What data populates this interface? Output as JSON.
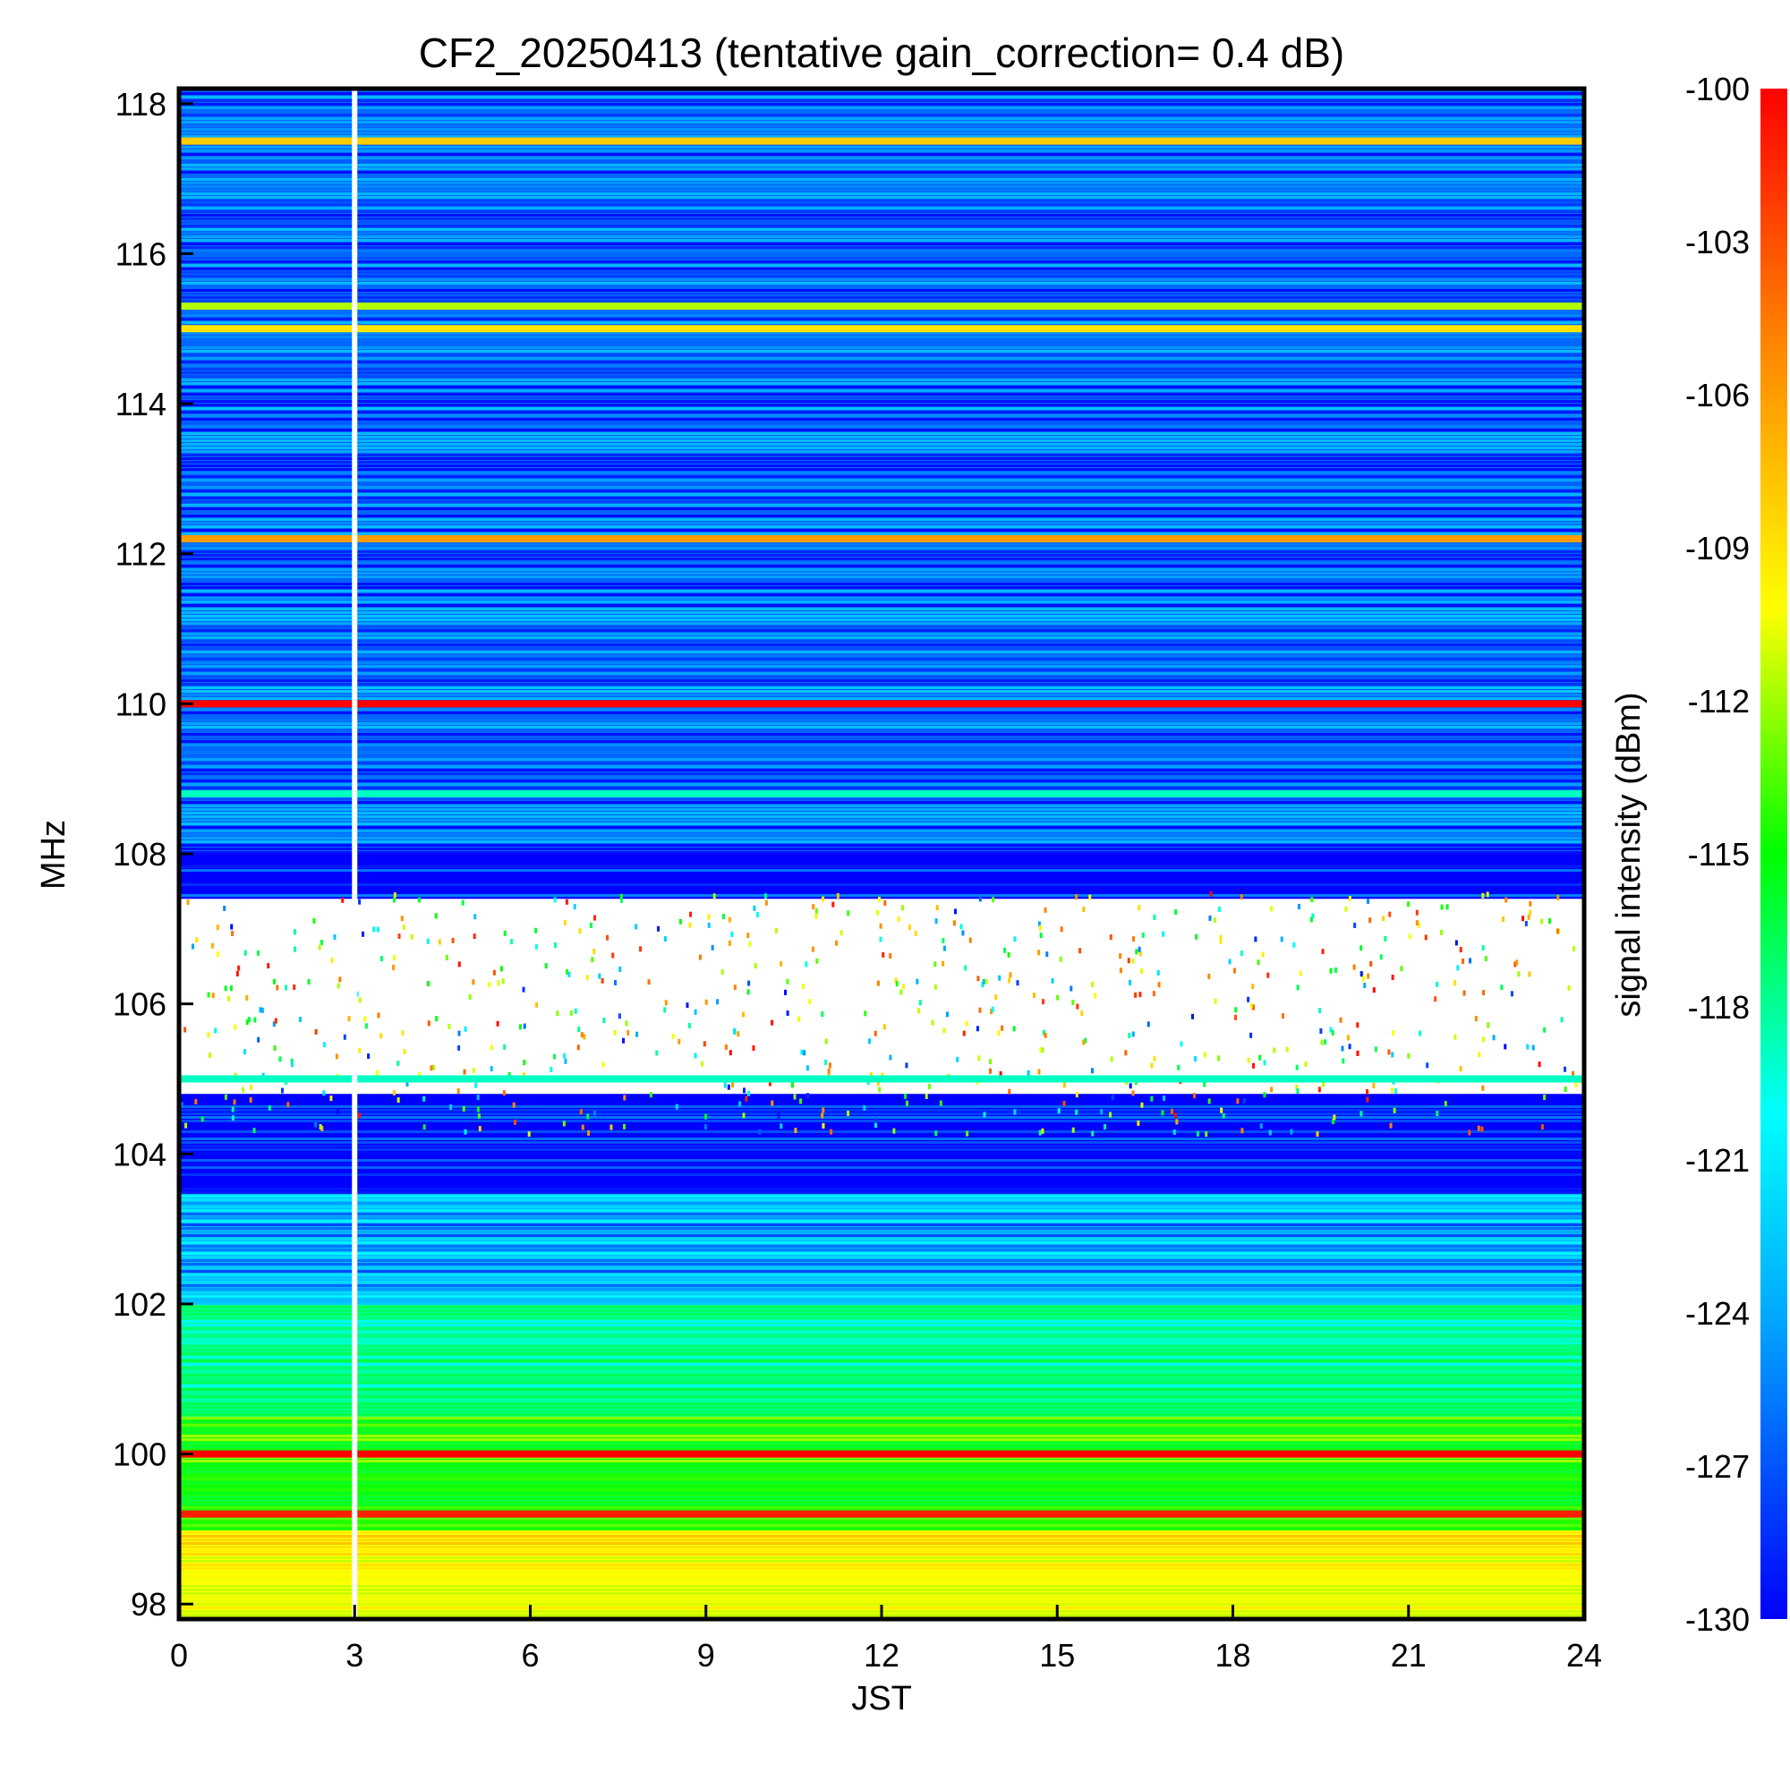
{
  "chart_data": {
    "type": "heatmap",
    "title": "CF2_20250413 (tentative gain_correction=  0.4 dB)",
    "xlabel": "JST",
    "ylabel": "MHz",
    "colorbar_label": "signal intensity (dBm)",
    "xlim": [
      0,
      24
    ],
    "ylim": [
      97.8,
      118.2
    ],
    "x_ticks": [
      0,
      3,
      6,
      9,
      12,
      15,
      18,
      21,
      24
    ],
    "x_tick_labels": [
      "0",
      "3",
      "6",
      "9",
      "12",
      "15",
      "18",
      "21",
      "24"
    ],
    "y_ticks": [
      98,
      100,
      102,
      104,
      106,
      108,
      110,
      112,
      114,
      116,
      118
    ],
    "y_tick_labels": [
      "98",
      "100",
      "102",
      "104",
      "106",
      "108",
      "110",
      "112",
      "114",
      "116",
      "118"
    ],
    "color_range": [
      -130,
      -100
    ],
    "colorbar_ticks": [
      -100,
      -103,
      -106,
      -109,
      -112,
      -115,
      -118,
      -121,
      -124,
      -127,
      -130
    ],
    "colorbar_tick_labels": [
      "-100",
      "-103",
      "-106",
      "-109",
      "-112",
      "-115",
      "-118",
      "-121",
      "-124",
      "-127",
      "-130"
    ],
    "colormap": [
      "#0000ff",
      "#00aaff",
      "#00ffff",
      "#00ff66",
      "#00ff00",
      "#aaff00",
      "#ffff00",
      "#ffaa00",
      "#ff6600",
      "#ff0000"
    ],
    "data_gap_time_jst": 3.0,
    "strong_carriers_mhz": [
      {
        "freq": 117.5,
        "dbm": -108
      },
      {
        "freq": 115.3,
        "dbm": -113
      },
      {
        "freq": 115.0,
        "dbm": -109
      },
      {
        "freq": 112.2,
        "dbm": -106
      },
      {
        "freq": 110.0,
        "dbm": -100
      },
      {
        "freq": 108.8,
        "dbm": -122
      },
      {
        "freq": 105.0,
        "dbm": -122
      },
      {
        "freq": 100.0,
        "dbm": -100
      },
      {
        "freq": 99.2,
        "dbm": -101
      }
    ],
    "background_level_by_band": [
      {
        "from": 108.0,
        "to": 118.2,
        "dbm": -128
      },
      {
        "from": 103.5,
        "to": 108.0,
        "dbm": -130
      },
      {
        "from": 102.0,
        "to": 103.5,
        "dbm": -126
      },
      {
        "from": 100.5,
        "to": 102.0,
        "dbm": -121
      },
      {
        "from": 99.0,
        "to": 100.5,
        "dbm": -116
      },
      {
        "from": 97.8,
        "to": 99.0,
        "dbm": -110
      }
    ]
  }
}
